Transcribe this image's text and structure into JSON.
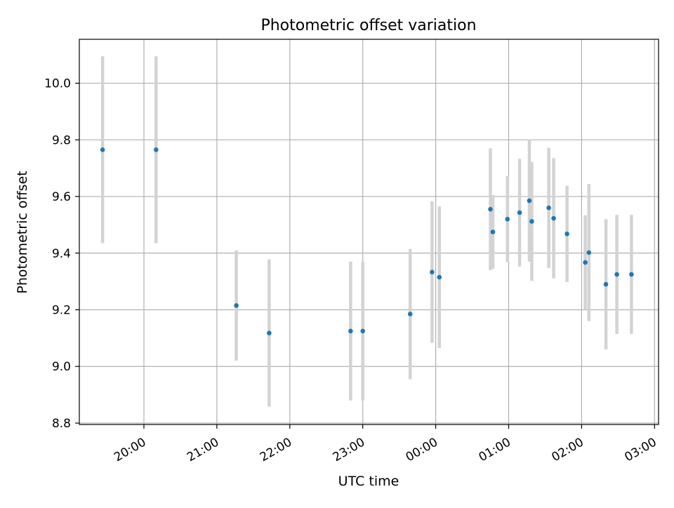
{
  "chart_data": {
    "type": "scatter",
    "title": "Photometric offset variation",
    "xlabel": "UTC time",
    "ylabel": "Photometric offset",
    "x_tick_labels": [
      "20:00",
      "21:00",
      "22:00",
      "23:00",
      "00:00",
      "01:00",
      "02:00",
      "03:00"
    ],
    "x_ticks_hours": [
      0,
      1,
      2,
      3,
      4,
      5,
      6,
      7
    ],
    "y_tick_labels": [
      "8.8",
      "9.0",
      "9.2",
      "9.4",
      "9.6",
      "9.8",
      "10.0"
    ],
    "y_ticks": [
      8.8,
      9.0,
      9.2,
      9.4,
      9.6,
      9.8,
      10.0
    ],
    "ylim": [
      8.795,
      10.155
    ],
    "grid": true,
    "colors": {
      "point": "#1f77b4",
      "errorbar": "#d3d3d3",
      "grid": "#b0b0b0",
      "axes": "#000000"
    },
    "series": [
      {
        "points": [
          {
            "time": "19:26",
            "y": 9.765,
            "err": 0.33
          },
          {
            "time": "20:10",
            "y": 9.765,
            "err": 0.33
          },
          {
            "time": "21:16",
            "y": 9.215,
            "err": 0.195
          },
          {
            "time": "21:43",
            "y": 9.118,
            "err": 0.26
          },
          {
            "time": "22:50",
            "y": 9.125,
            "err": 0.245
          },
          {
            "time": "23:00",
            "y": 9.125,
            "err": 0.245
          },
          {
            "time": "23:39",
            "y": 9.185,
            "err": 0.23
          },
          {
            "time": "23:57",
            "y": 9.333,
            "err": 0.25
          },
          {
            "time": "00:03",
            "y": 9.315,
            "err": 0.25
          },
          {
            "time": "00:45",
            "y": 9.555,
            "err": 0.215
          },
          {
            "time": "00:47",
            "y": 9.475,
            "err": 0.13
          },
          {
            "time": "00:59",
            "y": 9.52,
            "err": 0.152
          },
          {
            "time": "01:09",
            "y": 9.543,
            "err": 0.19
          },
          {
            "time": "01:17",
            "y": 9.585,
            "err": 0.215
          },
          {
            "time": "01:19",
            "y": 9.512,
            "err": 0.21
          },
          {
            "time": "01:33",
            "y": 9.56,
            "err": 0.212
          },
          {
            "time": "01:37",
            "y": 9.523,
            "err": 0.212
          },
          {
            "time": "01:48",
            "y": 9.468,
            "err": 0.17
          },
          {
            "time": "02:03",
            "y": 9.367,
            "err": 0.167
          },
          {
            "time": "02:06",
            "y": 9.402,
            "err": 0.242
          },
          {
            "time": "02:20",
            "y": 9.29,
            "err": 0.23
          },
          {
            "time": "02:29",
            "y": 9.325,
            "err": 0.21
          },
          {
            "time": "02:41",
            "y": 9.325,
            "err": 0.21
          }
        ]
      }
    ]
  }
}
